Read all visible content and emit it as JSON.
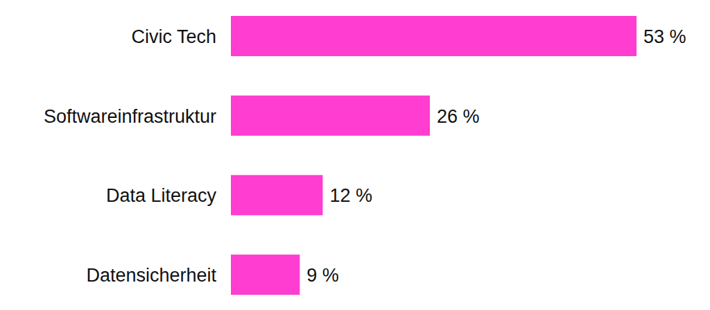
{
  "chart_data": {
    "type": "bar",
    "orientation": "horizontal",
    "categories": [
      "Civic Tech",
      "Softwareinfrastruktur",
      "Data Literacy",
      "Datensicherheit"
    ],
    "values": [
      53,
      26,
      12,
      9
    ],
    "value_labels": [
      "53 %",
      "26 %",
      "12 %",
      "9 %"
    ],
    "color": "#ff3dd1",
    "data_labels": true,
    "tick_labels": "y",
    "grid": false
  }
}
